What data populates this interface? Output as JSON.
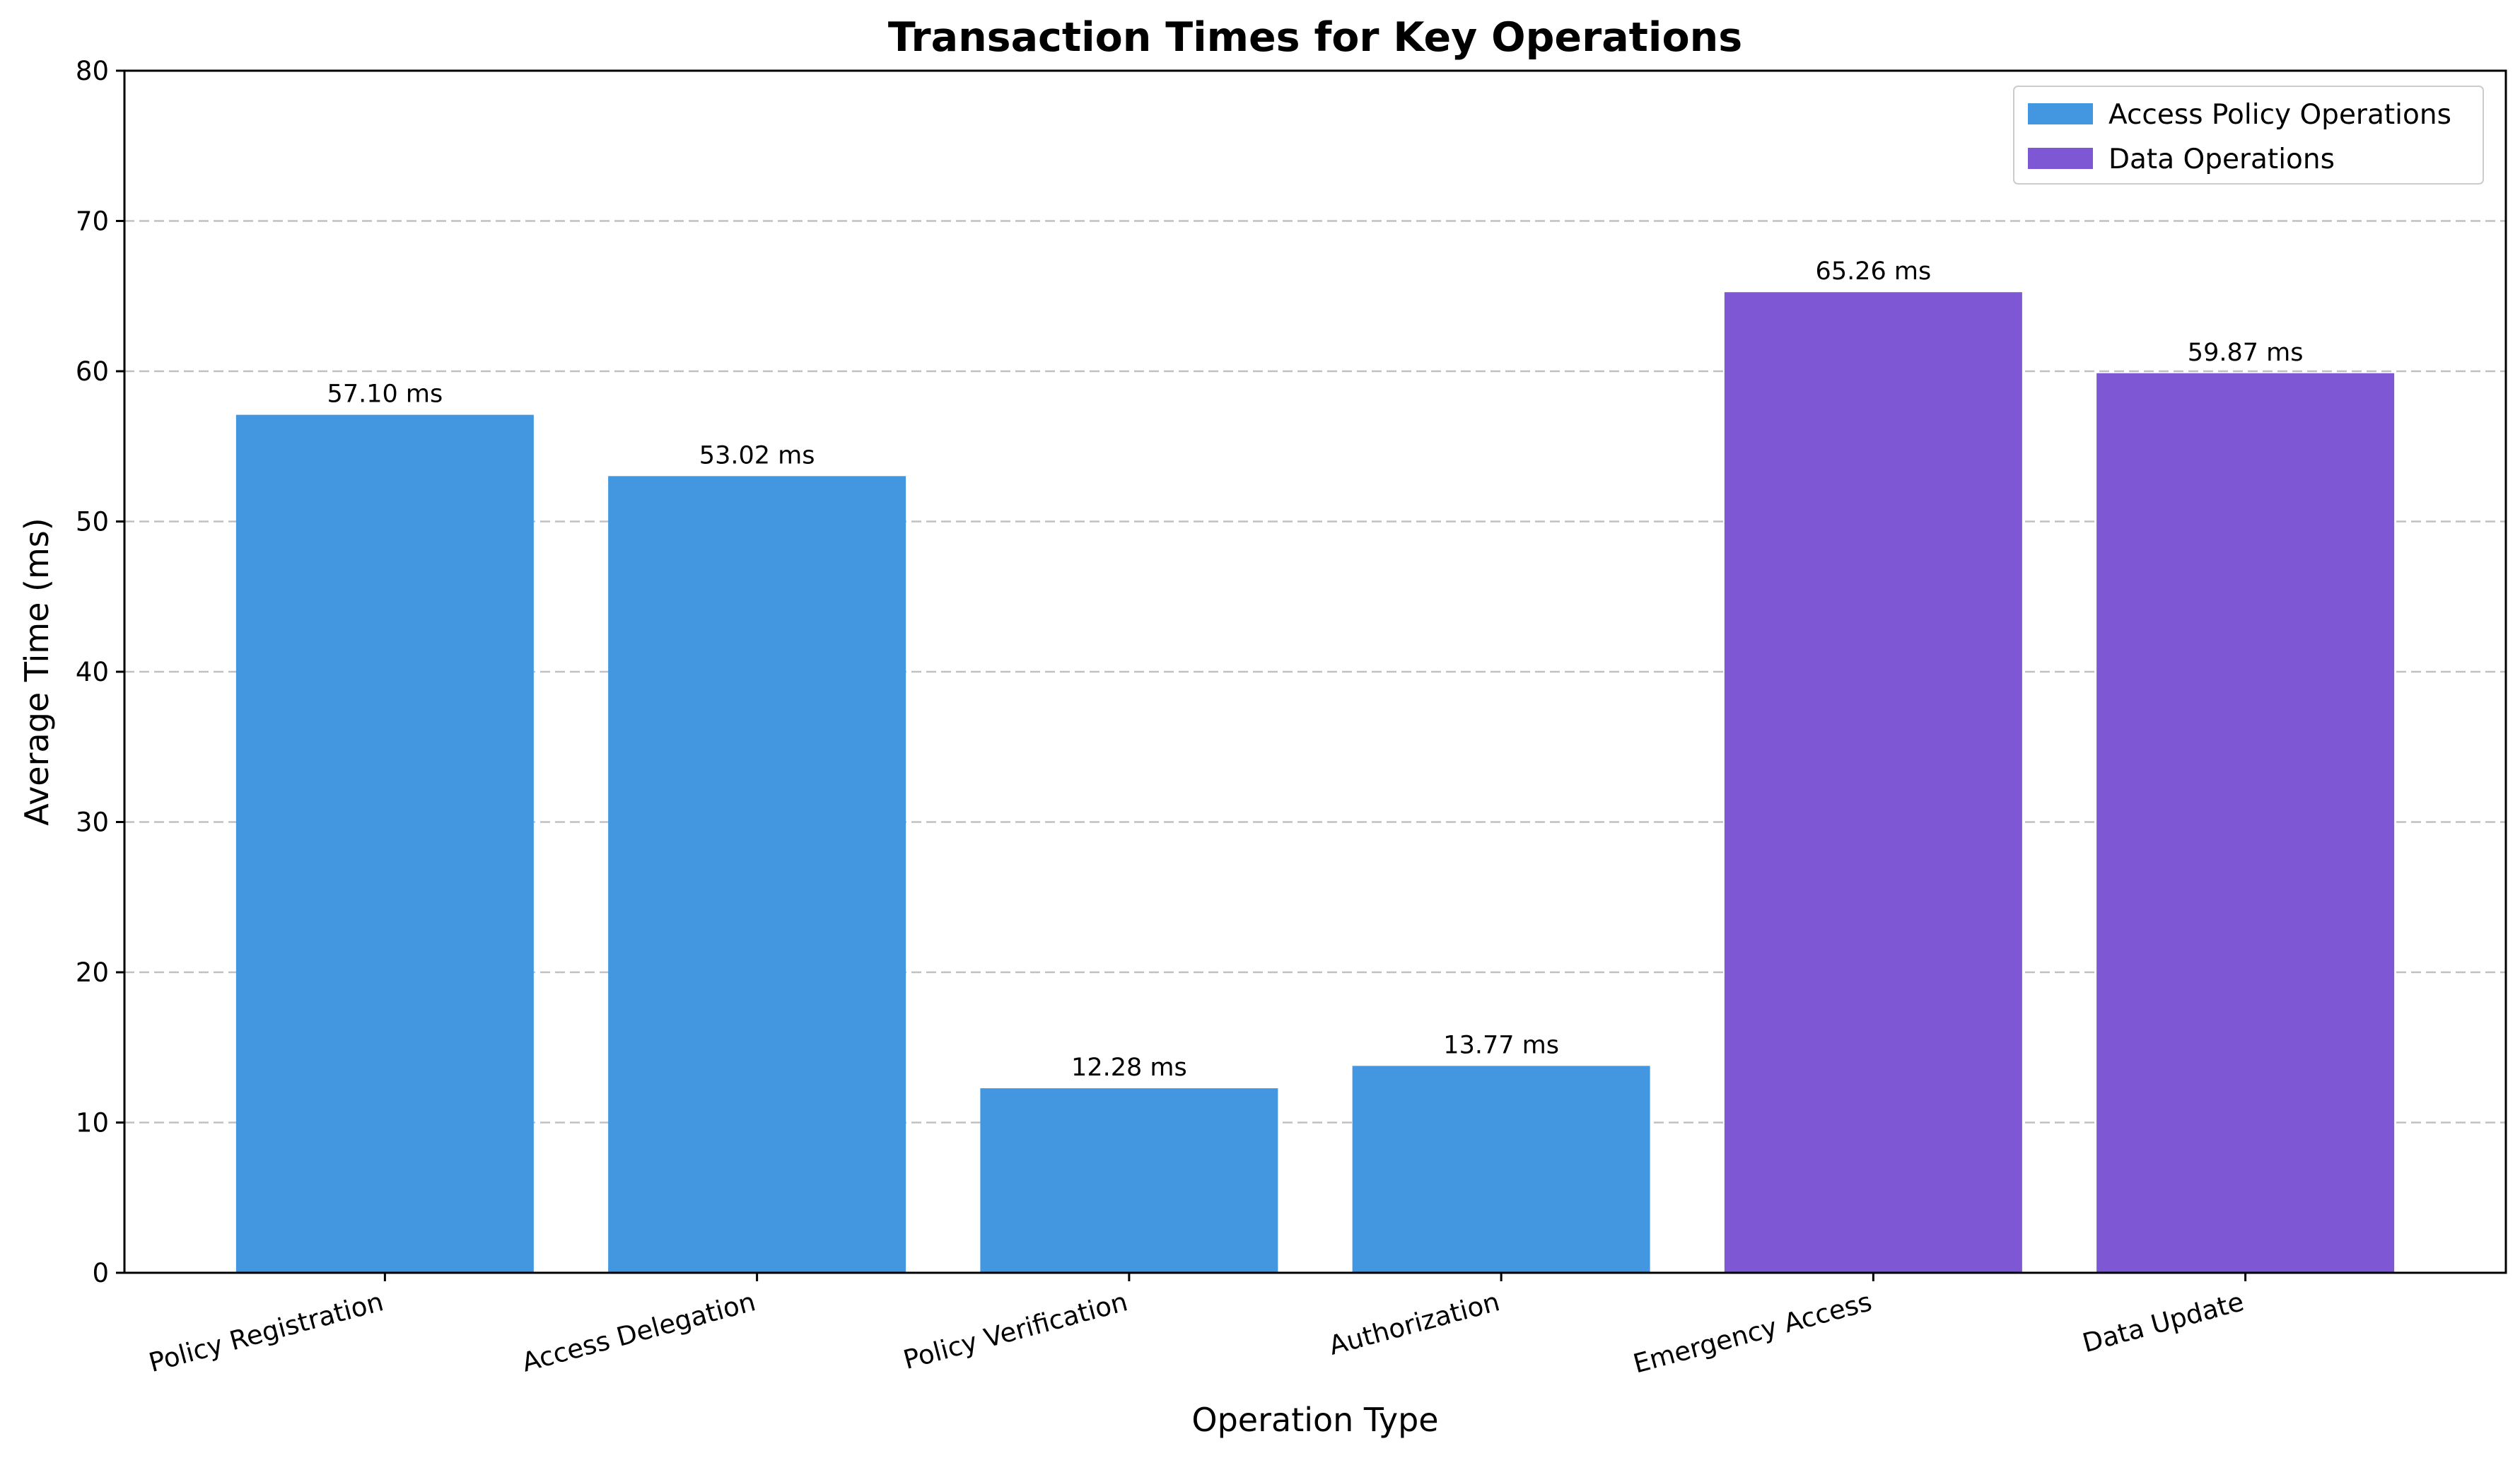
{
  "chart_data": {
    "type": "bar",
    "title": "Transaction Times for Key Operations",
    "xlabel": "Operation Type",
    "ylabel": "Average Time (ms)",
    "ylim": [
      0,
      80
    ],
    "yticks": [
      0,
      10,
      20,
      30,
      40,
      50,
      60,
      70,
      80
    ],
    "grid": "y, dashed",
    "legend_position": "top-right",
    "categories": [
      "Policy Registration",
      "Access Delegation",
      "Policy Verification",
      "Authorization",
      "Emergency Access",
      "Data Update"
    ],
    "values": [
      57.1,
      53.02,
      12.28,
      13.77,
      65.26,
      59.87
    ],
    "data_labels": [
      "57.10 ms",
      "53.02 ms",
      "12.28 ms",
      "13.77 ms",
      "65.26 ms",
      "59.87 ms"
    ],
    "bar_series": [
      0,
      0,
      0,
      0,
      1,
      1
    ],
    "series": [
      {
        "name": "Access Policy Operations",
        "color": "#4397e0"
      },
      {
        "name": "Data Operations",
        "color": "#7e58d4"
      }
    ]
  }
}
